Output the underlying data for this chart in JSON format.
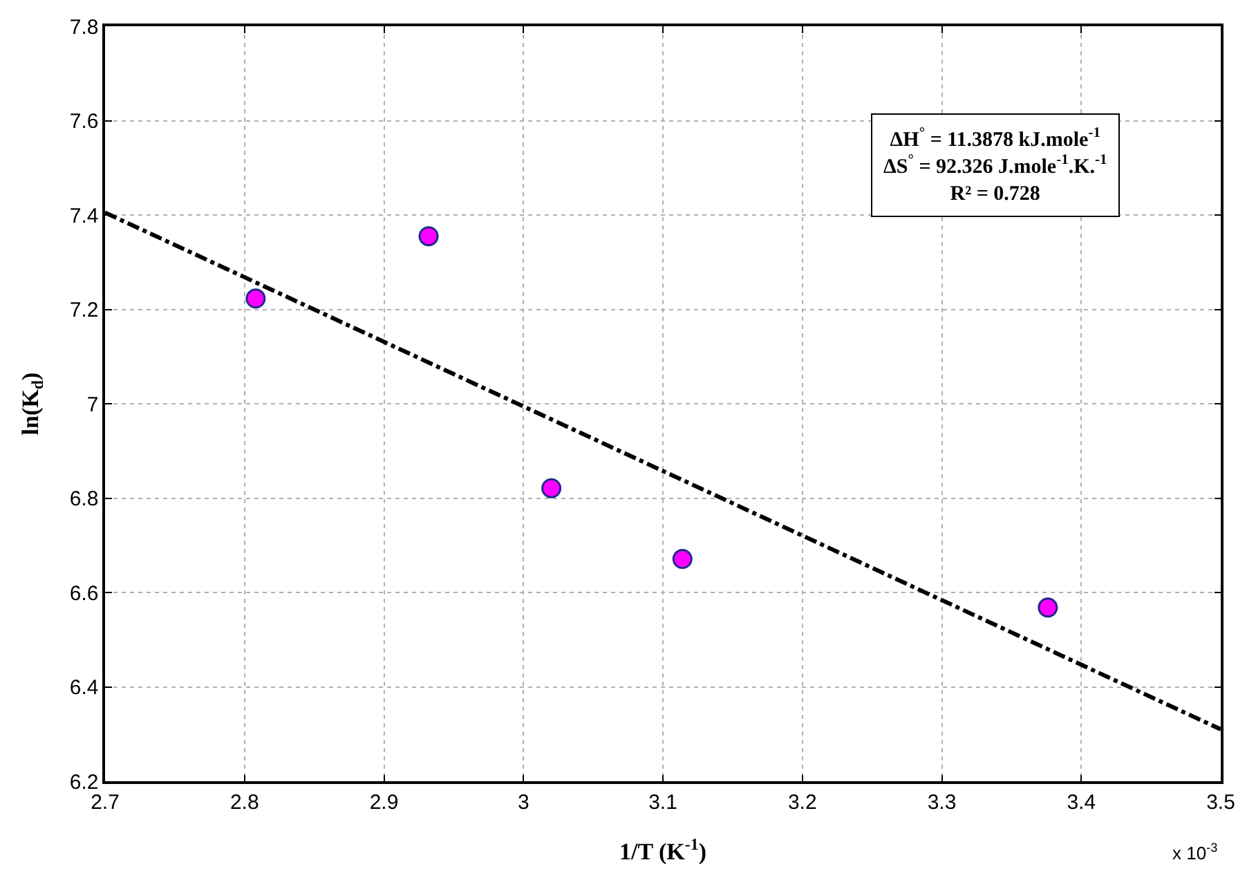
{
  "chart_data": {
    "type": "scatter",
    "xlabel": "1/T (K$^{-1}$)",
    "ylabel": "ln(K$_{d}$)",
    "xlim": [
      2.7,
      3.5
    ],
    "xticks": [
      2.7,
      2.8,
      2.9,
      3,
      3.1,
      3.2,
      3.3,
      3.4,
      3.5
    ],
    "ylim": [
      6.2,
      7.8
    ],
    "yticks": [
      6.2,
      6.4,
      6.6,
      6.8,
      7,
      7.2,
      7.4,
      7.6,
      7.8
    ],
    "grid": true,
    "marker": "circle",
    "series": [
      {
        "color": "#ff00ff",
        "x": [
          2.808,
          2.932,
          3.02,
          3.114,
          3.376
        ],
        "values": [
          7.223,
          7.355,
          6.821,
          6.671,
          6.568
        ]
      },
      {
        "type": "line",
        "color": "#000000",
        "line_style": "dashed",
        "marker": "none",
        "x": [
          2.7,
          3.5
        ],
        "values": [
          7.405,
          6.31
        ]
      }
    ],
    "annotations": [
      "ΔH$^{°}$ = 11.3878 kJ.mole$^{-1}$\nΔS$^{°}$ = 92.326 J.mole$^{-1}$.K.$^{-1}$\nR² = 0.728",
      "x 10$^{-3}$"
    ]
  }
}
